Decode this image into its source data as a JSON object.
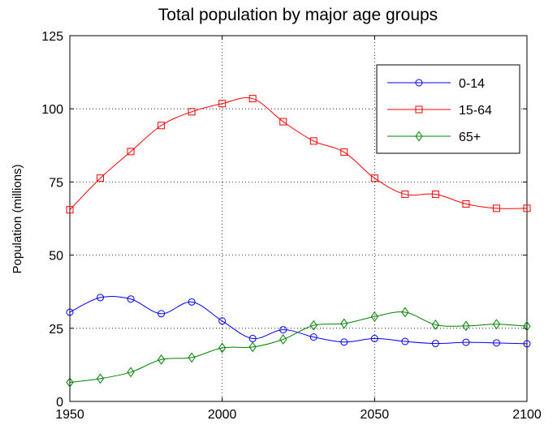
{
  "chart_data": {
    "type": "line",
    "title": "Total population by major age groups",
    "xlabel": "",
    "ylabel": "Population (millions)",
    "xlim": [
      1950,
      2100
    ],
    "ylim": [
      0,
      125
    ],
    "xticks": [
      1950,
      2000,
      2050,
      2100
    ],
    "yticks": [
      0,
      25,
      50,
      75,
      100,
      125
    ],
    "grid": true,
    "legend_position": "top-right",
    "x": [
      1950,
      1960,
      1970,
      1980,
      1990,
      2000,
      2010,
      2020,
      2030,
      2040,
      2050,
      2060,
      2070,
      2080,
      2090,
      2100
    ],
    "series": [
      {
        "name": "0-14",
        "color": "#0000ff",
        "marker": "circle",
        "values": [
          30.5,
          35.5,
          35.0,
          30.0,
          34.0,
          27.5,
          21.5,
          24.5,
          22.0,
          20.3,
          21.5,
          20.5,
          19.8,
          20.2,
          20.0,
          19.7
        ]
      },
      {
        "name": "15-64",
        "color": "#ff0000",
        "marker": "square",
        "values": [
          65.5,
          76.3,
          85.4,
          94.3,
          99.0,
          101.8,
          103.5,
          95.6,
          89.0,
          85.2,
          76.3,
          70.8,
          70.8,
          67.5,
          66.0,
          66.0
        ]
      },
      {
        "name": "65+",
        "color": "#008000",
        "marker": "diamond",
        "values": [
          6.5,
          7.8,
          10.0,
          14.3,
          15.0,
          18.3,
          18.6,
          21.2,
          26.0,
          26.6,
          29.0,
          30.5,
          26.2,
          25.8,
          26.4,
          25.7
        ]
      }
    ]
  }
}
